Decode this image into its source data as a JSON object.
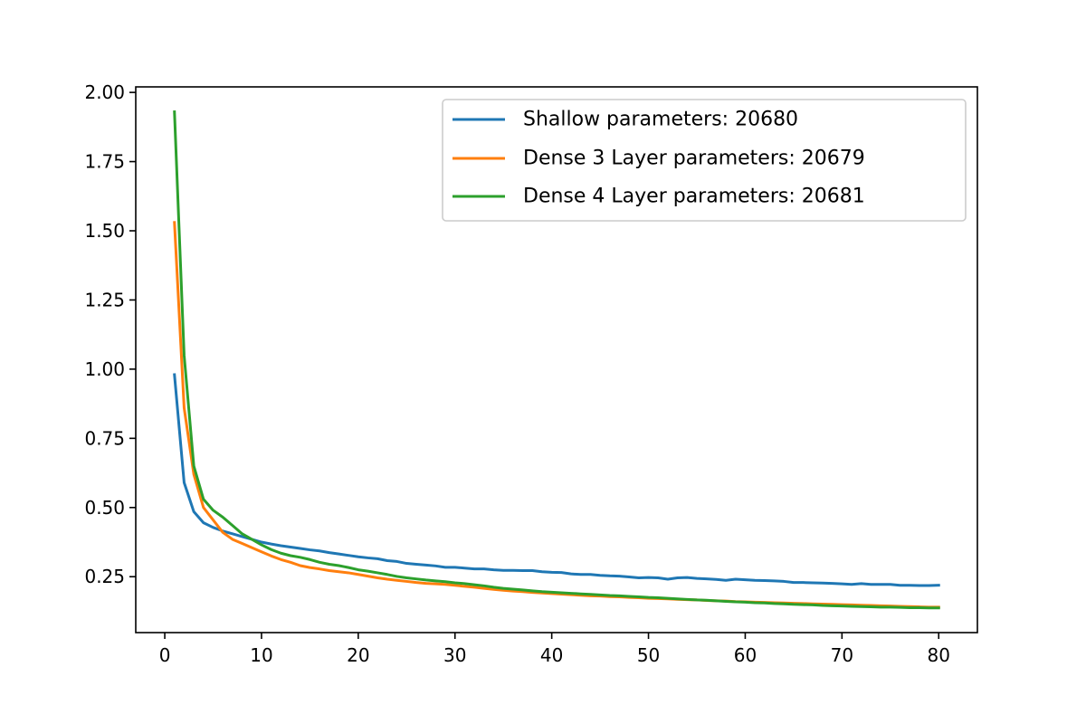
{
  "chart_data": {
    "type": "line",
    "title": "",
    "xlabel": "",
    "ylabel": "",
    "xlim": [
      -3,
      84
    ],
    "ylim": [
      0.048,
      2.02
    ],
    "xticks": [
      0,
      10,
      20,
      30,
      40,
      50,
      60,
      70,
      80
    ],
    "yticks": [
      0.25,
      0.5,
      0.75,
      1.0,
      1.25,
      1.5,
      1.75,
      2.0
    ],
    "xtick_labels": [
      "0",
      "10",
      "20",
      "30",
      "40",
      "50",
      "60",
      "70",
      "80"
    ],
    "ytick_labels": [
      "0.25",
      "0.50",
      "0.75",
      "1.00",
      "1.25",
      "1.50",
      "1.75",
      "2.00"
    ],
    "grid": false,
    "legend_position": "top-right",
    "x": [
      1,
      2,
      3,
      4,
      5,
      6,
      7,
      8,
      9,
      10,
      11,
      12,
      13,
      14,
      15,
      16,
      17,
      18,
      19,
      20,
      21,
      22,
      23,
      24,
      25,
      26,
      27,
      28,
      29,
      30,
      31,
      32,
      33,
      34,
      35,
      36,
      37,
      38,
      39,
      40,
      41,
      42,
      43,
      44,
      45,
      46,
      47,
      48,
      49,
      50,
      51,
      52,
      53,
      54,
      55,
      56,
      57,
      58,
      59,
      60,
      61,
      62,
      63,
      64,
      65,
      66,
      67,
      68,
      69,
      70,
      71,
      72,
      73,
      74,
      75,
      76,
      77,
      78,
      79,
      80
    ],
    "series": [
      {
        "name": "Shallow parameters: 20680",
        "color": "#1f77b4",
        "values": [
          0.98,
          0.59,
          0.485,
          0.445,
          0.428,
          0.415,
          0.405,
          0.395,
          0.385,
          0.375,
          0.368,
          0.362,
          0.357,
          0.352,
          0.347,
          0.343,
          0.337,
          0.332,
          0.327,
          0.322,
          0.318,
          0.315,
          0.308,
          0.305,
          0.298,
          0.295,
          0.292,
          0.289,
          0.284,
          0.284,
          0.281,
          0.278,
          0.278,
          0.275,
          0.273,
          0.273,
          0.272,
          0.272,
          0.268,
          0.266,
          0.265,
          0.26,
          0.258,
          0.258,
          0.255,
          0.253,
          0.252,
          0.249,
          0.246,
          0.247,
          0.246,
          0.241,
          0.246,
          0.247,
          0.244,
          0.242,
          0.24,
          0.237,
          0.241,
          0.239,
          0.237,
          0.236,
          0.235,
          0.233,
          0.229,
          0.229,
          0.228,
          0.227,
          0.226,
          0.224,
          0.222,
          0.225,
          0.222,
          0.222,
          0.222,
          0.219,
          0.219,
          0.218,
          0.218,
          0.219
        ]
      },
      {
        "name": "Dense 3 Layer parameters: 20679",
        "color": "#ff7f0e",
        "values": [
          1.53,
          0.86,
          0.62,
          0.5,
          0.455,
          0.41,
          0.385,
          0.37,
          0.355,
          0.34,
          0.325,
          0.312,
          0.302,
          0.29,
          0.283,
          0.278,
          0.272,
          0.268,
          0.264,
          0.258,
          0.252,
          0.246,
          0.241,
          0.237,
          0.233,
          0.229,
          0.226,
          0.224,
          0.222,
          0.219,
          0.215,
          0.212,
          0.208,
          0.204,
          0.201,
          0.198,
          0.196,
          0.193,
          0.191,
          0.189,
          0.187,
          0.185,
          0.183,
          0.181,
          0.18,
          0.178,
          0.177,
          0.175,
          0.174,
          0.172,
          0.171,
          0.17,
          0.168,
          0.167,
          0.166,
          0.164,
          0.163,
          0.162,
          0.16,
          0.159,
          0.158,
          0.157,
          0.156,
          0.155,
          0.154,
          0.153,
          0.152,
          0.151,
          0.15,
          0.149,
          0.148,
          0.147,
          0.146,
          0.145,
          0.144,
          0.143,
          0.142,
          0.141,
          0.14,
          0.14
        ]
      },
      {
        "name": "Dense 4 Layer parameters: 20681",
        "color": "#2ca02c",
        "values": [
          1.93,
          1.05,
          0.65,
          0.53,
          0.49,
          0.465,
          0.435,
          0.405,
          0.385,
          0.365,
          0.348,
          0.335,
          0.326,
          0.32,
          0.312,
          0.302,
          0.295,
          0.29,
          0.283,
          0.275,
          0.27,
          0.264,
          0.258,
          0.251,
          0.246,
          0.242,
          0.238,
          0.235,
          0.232,
          0.228,
          0.225,
          0.221,
          0.217,
          0.212,
          0.208,
          0.205,
          0.202,
          0.199,
          0.196,
          0.194,
          0.192,
          0.19,
          0.188,
          0.186,
          0.184,
          0.182,
          0.181,
          0.179,
          0.177,
          0.175,
          0.174,
          0.172,
          0.17,
          0.168,
          0.166,
          0.165,
          0.163,
          0.161,
          0.159,
          0.158,
          0.156,
          0.155,
          0.153,
          0.152,
          0.15,
          0.149,
          0.148,
          0.146,
          0.145,
          0.144,
          0.143,
          0.142,
          0.141,
          0.14,
          0.14,
          0.139,
          0.138,
          0.138,
          0.137,
          0.137
        ]
      }
    ]
  }
}
